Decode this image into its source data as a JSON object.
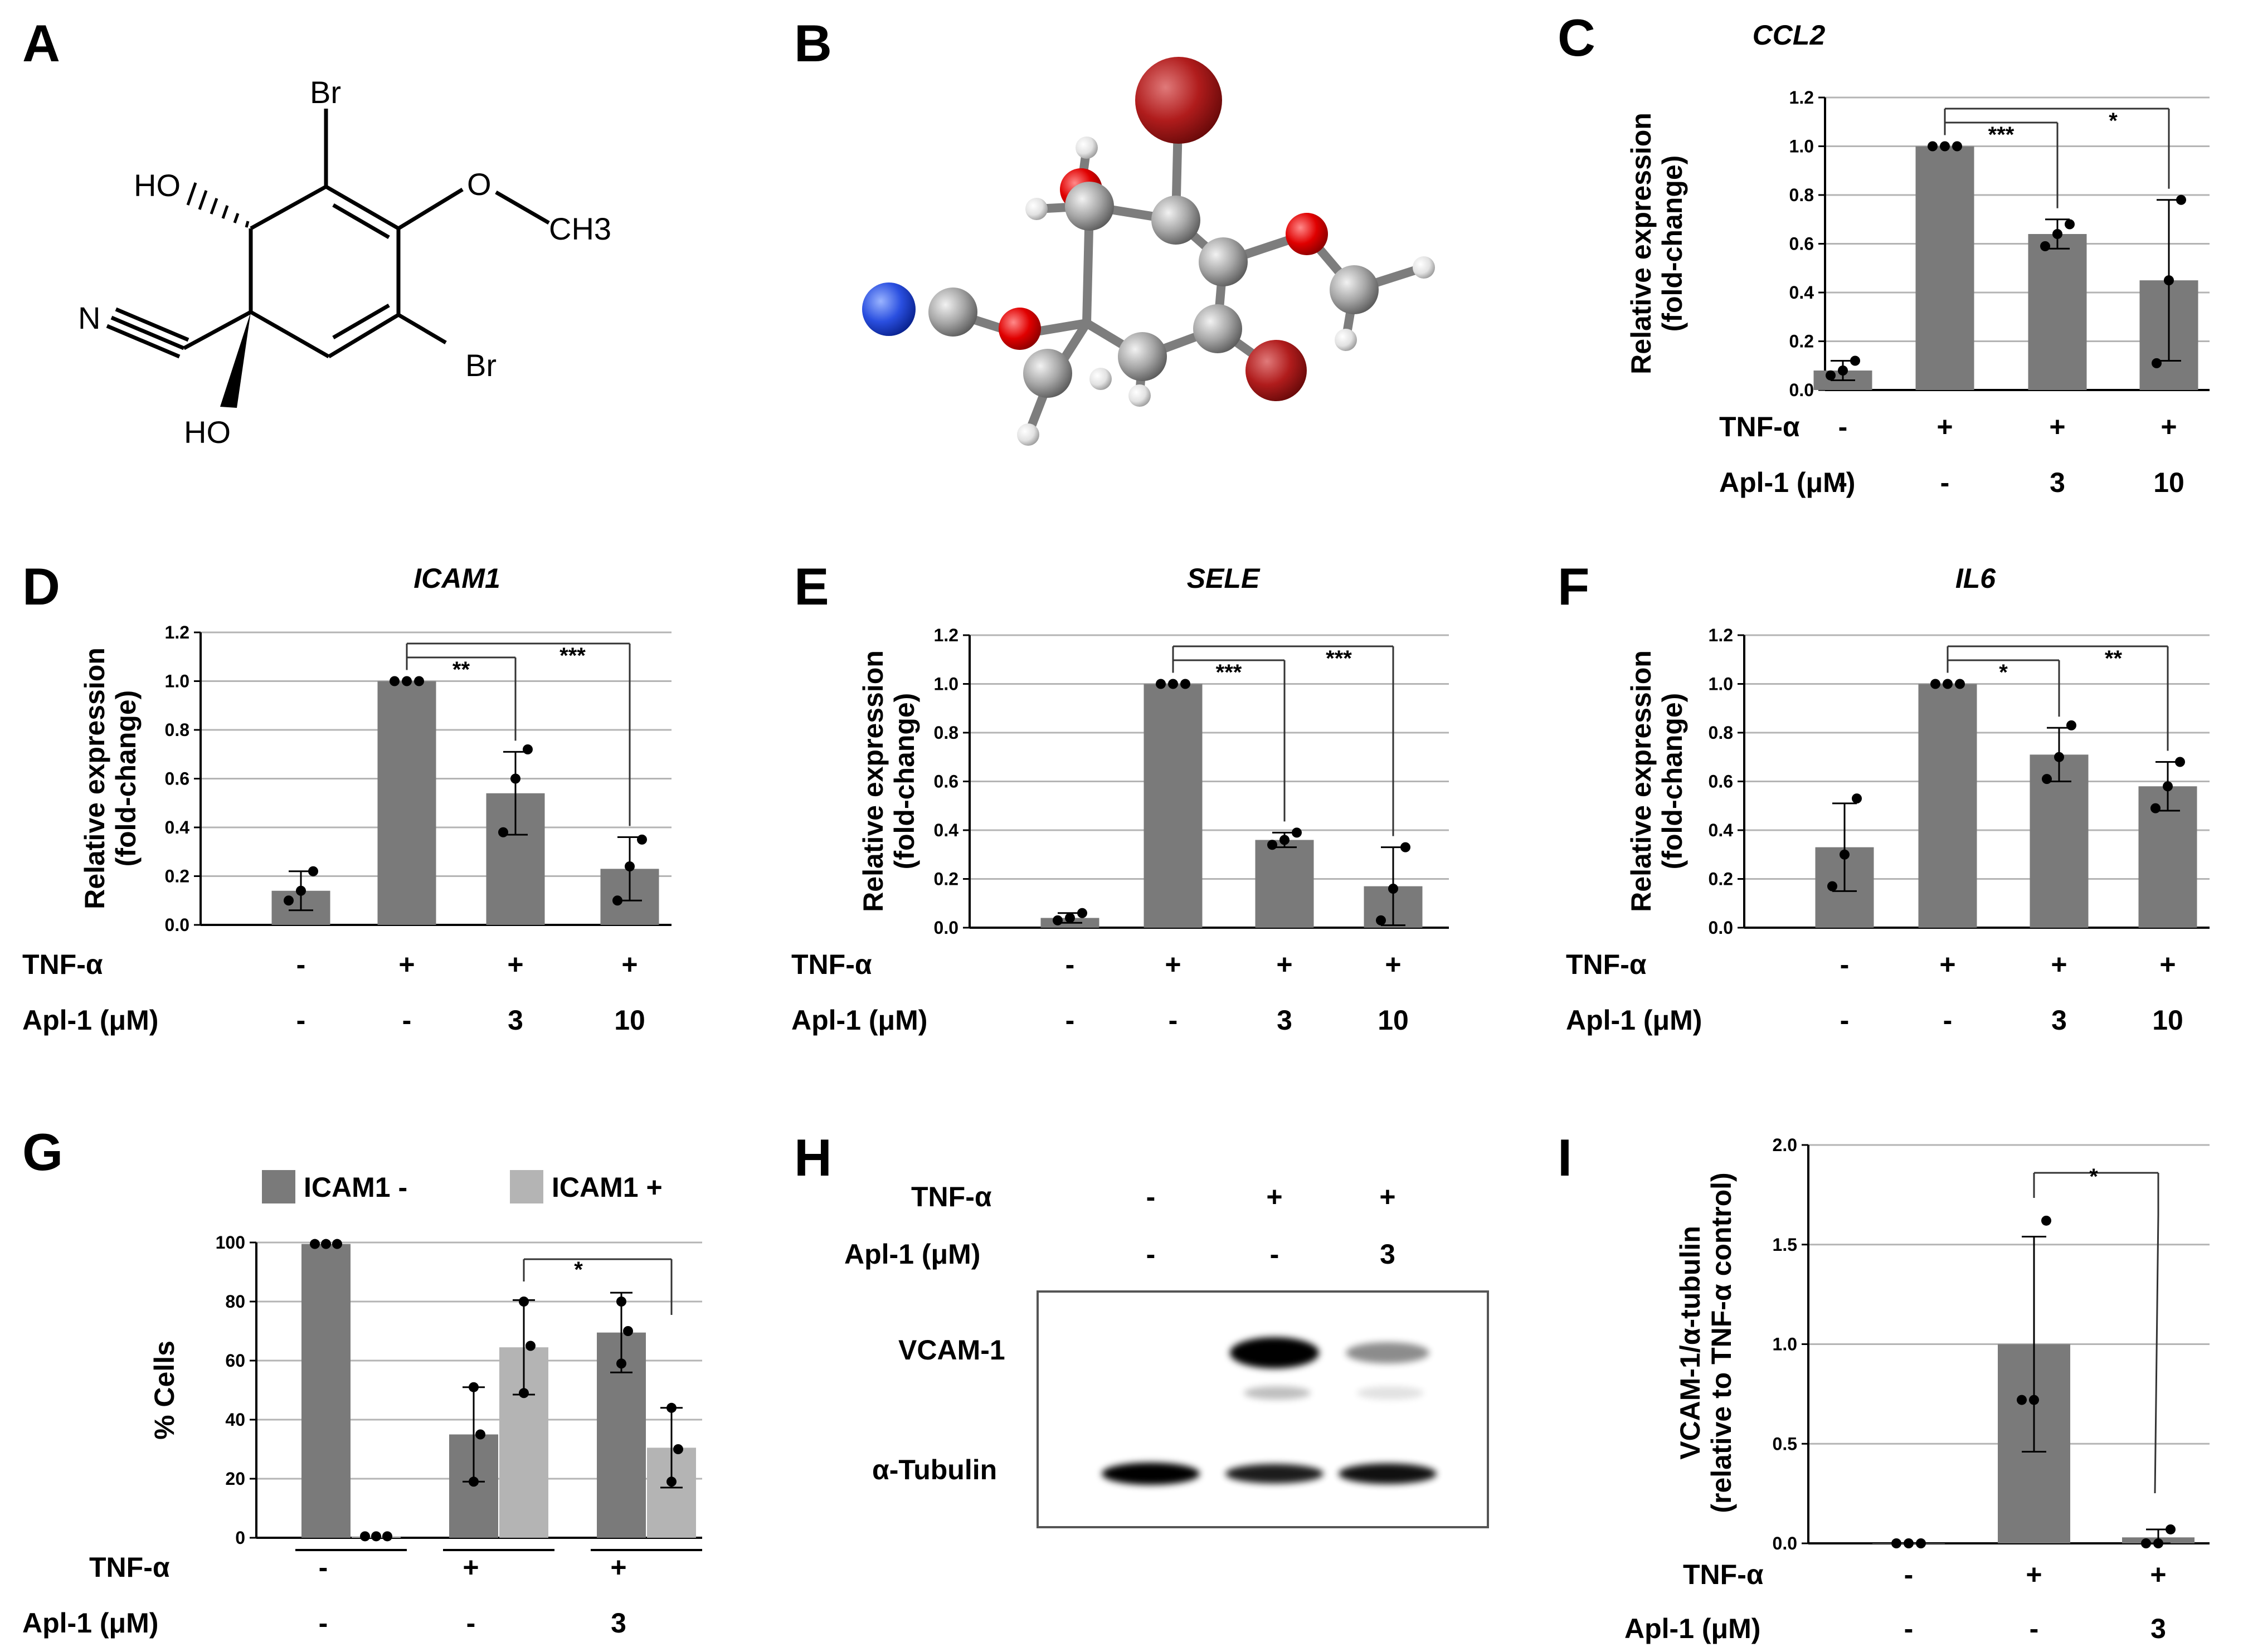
{
  "panels": {
    "A": "A",
    "B": "B",
    "C": "C",
    "D": "D",
    "E": "E",
    "F": "F",
    "G": "G",
    "H": "H",
    "I": "I"
  },
  "structure": {
    "br_top": "Br",
    "br_bottom": "Br",
    "ho_top": "HO",
    "ho_bottom": "HO",
    "o": "O",
    "ch3": "CH3",
    "n": "N"
  },
  "treatments": {
    "tnf_label": "TNF-α",
    "apl_label": "Apl-1 (μM)",
    "tnf_values": [
      "-",
      "+",
      "+",
      "+"
    ],
    "apl_values": [
      "-",
      "-",
      "3",
      "10"
    ]
  },
  "panel_g": {
    "tnf_values": [
      "-",
      "+",
      "+"
    ],
    "apl_values": [
      "-",
      "-",
      "3"
    ]
  },
  "panel_i": {
    "tnf_values": [
      "-",
      "+",
      "+"
    ],
    "apl_values": [
      "-",
      "-",
      "3"
    ]
  },
  "western": {
    "tnf_values": [
      "-",
      "+",
      "+"
    ],
    "apl_values": [
      "-",
      "-",
      "3"
    ],
    "band_labels": [
      "VCAM-1",
      "α-Tubulin"
    ],
    "vcam_intensity": [
      0.0,
      1.0,
      0.35
    ],
    "tubulin_intensity": [
      1.0,
      0.75,
      0.85
    ]
  },
  "chart_data": [
    {
      "type": "bar",
      "panel": "C",
      "title": "CCL2",
      "ylabel": "Relative expression (fold-change)",
      "ylim": [
        0,
        1.2
      ],
      "yticks": [
        "0.0",
        "0.2",
        "0.4",
        "0.6",
        "0.8",
        "1.0",
        "1.2"
      ],
      "values": [
        0.08,
        1.0,
        0.64,
        0.45
      ],
      "errors": [
        0.04,
        0.0,
        0.06,
        0.33
      ],
      "points": [
        [
          0.06,
          0.08,
          0.12
        ],
        [
          1.0,
          1.0,
          1.0
        ],
        [
          0.59,
          0.64,
          0.68
        ],
        [
          0.11,
          0.45,
          0.78
        ]
      ],
      "sig": [
        {
          "from": 1,
          "to": 2,
          "label": "***"
        },
        {
          "from": 1,
          "to": 3,
          "label": "*"
        }
      ]
    },
    {
      "type": "bar",
      "panel": "D",
      "title": "ICAM1",
      "ylabel": "Relative expression (fold-change)",
      "ylim": [
        0,
        1.2
      ],
      "yticks": [
        "0.0",
        "0.2",
        "0.4",
        "0.6",
        "0.8",
        "1.0",
        "1.2"
      ],
      "values": [
        0.14,
        1.0,
        0.54,
        0.23
      ],
      "errors": [
        0.08,
        0.0,
        0.17,
        0.13
      ],
      "points": [
        [
          0.1,
          0.14,
          0.22
        ],
        [
          1.0,
          1.0,
          1.0
        ],
        [
          0.38,
          0.6,
          0.72
        ],
        [
          0.1,
          0.24,
          0.35
        ]
      ],
      "sig": [
        {
          "from": 1,
          "to": 2,
          "label": "**"
        },
        {
          "from": 1,
          "to": 3,
          "label": "***"
        }
      ]
    },
    {
      "type": "bar",
      "panel": "E",
      "title": "SELE",
      "ylabel": "Relative expression (fold-change)",
      "ylim": [
        0,
        1.2
      ],
      "yticks": [
        "0.0",
        "0.2",
        "0.4",
        "0.6",
        "0.8",
        "1.0",
        "1.2"
      ],
      "values": [
        0.04,
        1.0,
        0.36,
        0.17
      ],
      "errors": [
        0.02,
        0.0,
        0.03,
        0.16
      ],
      "points": [
        [
          0.03,
          0.04,
          0.06
        ],
        [
          1.0,
          1.0,
          1.0
        ],
        [
          0.34,
          0.36,
          0.39
        ],
        [
          0.03,
          0.16,
          0.33
        ]
      ],
      "sig": [
        {
          "from": 1,
          "to": 2,
          "label": "***"
        },
        {
          "from": 1,
          "to": 3,
          "label": "***"
        }
      ]
    },
    {
      "type": "bar",
      "panel": "F",
      "title": "IL6",
      "ylabel": "Relative expression (fold-change)",
      "ylim": [
        0,
        1.2
      ],
      "yticks": [
        "0.0",
        "0.2",
        "0.4",
        "0.6",
        "0.8",
        "1.0",
        "1.2"
      ],
      "values": [
        0.33,
        1.0,
        0.71,
        0.58
      ],
      "errors": [
        0.18,
        0.0,
        0.11,
        0.1
      ],
      "points": [
        [
          0.17,
          0.3,
          0.53
        ],
        [
          1.0,
          1.0,
          1.0
        ],
        [
          0.61,
          0.7,
          0.83
        ],
        [
          0.49,
          0.58,
          0.68
        ]
      ],
      "sig": [
        {
          "from": 1,
          "to": 2,
          "label": "*"
        },
        {
          "from": 1,
          "to": 3,
          "label": "**"
        }
      ]
    },
    {
      "type": "bar",
      "panel": "G",
      "ylabel": "% Cells",
      "ylim": [
        0,
        100
      ],
      "yticks": [
        "0",
        "20",
        "40",
        "60",
        "80",
        "100"
      ],
      "series": [
        {
          "name": "ICAM1 -",
          "color": "#7a7a7a",
          "values": [
            99.5,
            35,
            69.5
          ],
          "errors": [
            0,
            16,
            13.5
          ],
          "points": [
            [
              99.5,
              99.5,
              99.5
            ],
            [
              19,
              35,
              51
            ],
            [
              59,
              70,
              80
            ]
          ]
        },
        {
          "name": "ICAM1 +",
          "color": "#b4b4b4",
          "values": [
            0.5,
            64.5,
            30.5
          ],
          "errors": [
            0,
            16,
            13.5
          ],
          "points": [
            [
              0.5,
              0.5,
              0.5
            ],
            [
              49,
              65,
              80
            ],
            [
              19,
              30,
              44
            ]
          ]
        }
      ],
      "sig": [
        {
          "label": "*"
        }
      ]
    },
    {
      "type": "bar",
      "panel": "I",
      "ylabel": "VCAM-1/α-tubulin (relative to TNF-α control)",
      "ylim": [
        0,
        2.0
      ],
      "yticks": [
        "0.0",
        "0.5",
        "1.0",
        "1.5",
        "2.0"
      ],
      "values": [
        0.0,
        1.0,
        0.03
      ],
      "errors": [
        0.0,
        0.54,
        0.04
      ],
      "points": [
        [
          0.0,
          0.0,
          0.0
        ],
        [
          0.72,
          0.72,
          1.62
        ],
        [
          0.0,
          0.0,
          0.07
        ]
      ],
      "sig": [
        {
          "from": 1,
          "to": 2,
          "label": "*"
        }
      ]
    }
  ],
  "colors": {
    "bar": "#7a7a7a",
    "bar_light": "#b4b4b4",
    "grid": "#b4b4b4"
  }
}
